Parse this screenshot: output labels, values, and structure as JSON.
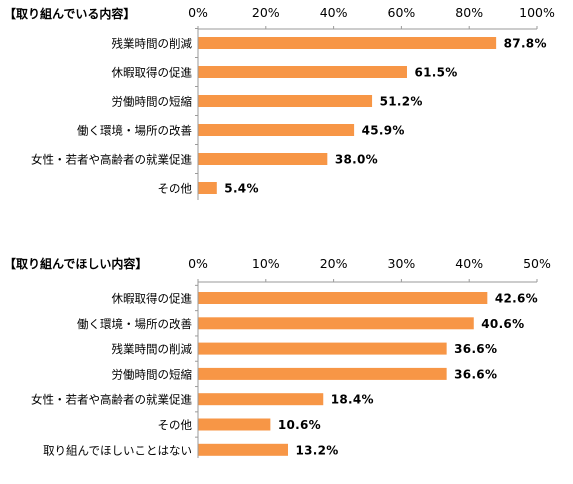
{
  "chart_data": [
    {
      "type": "bar",
      "orientation": "horizontal",
      "title": "【取り組んでいる内容】",
      "categories": [
        "残業時間の削減",
        "休暇取得の促進",
        "労働時間の短縮",
        "働く環境・場所の改善",
        "女性・若者や高齢者の就業促進",
        "その他"
      ],
      "values": [
        87.8,
        61.5,
        51.2,
        45.9,
        38.0,
        5.4
      ],
      "value_labels": [
        "87.8%",
        "61.5%",
        "51.2%",
        "45.9%",
        "38.0%",
        "5.4%"
      ],
      "xlim": [
        0,
        100
      ],
      "ticks": [
        "0%",
        "20%",
        "40%",
        "60%",
        "80%",
        "100%"
      ],
      "bar_color": "#f79646",
      "grid": false,
      "axis_position": "top"
    },
    {
      "type": "bar",
      "orientation": "horizontal",
      "title": "【取り組んでほしい内容】",
      "categories": [
        "休暇取得の促進",
        "働く環境・場所の改善",
        "残業時間の削減",
        "労働時間の短縮",
        "女性・若者や高齢者の就業促進",
        "その他",
        "取り組んでほしいことはない"
      ],
      "values": [
        42.6,
        40.6,
        36.6,
        36.6,
        18.4,
        10.6,
        13.2
      ],
      "value_labels": [
        "42.6%",
        "40.6%",
        "36.6%",
        "36.6%",
        "18.4%",
        "10.6%",
        "13.2%"
      ],
      "xlim": [
        0,
        50
      ],
      "ticks": [
        "0%",
        "10%",
        "20%",
        "30%",
        "40%",
        "50%"
      ],
      "bar_color": "#f79646",
      "grid": false,
      "axis_position": "top"
    }
  ]
}
